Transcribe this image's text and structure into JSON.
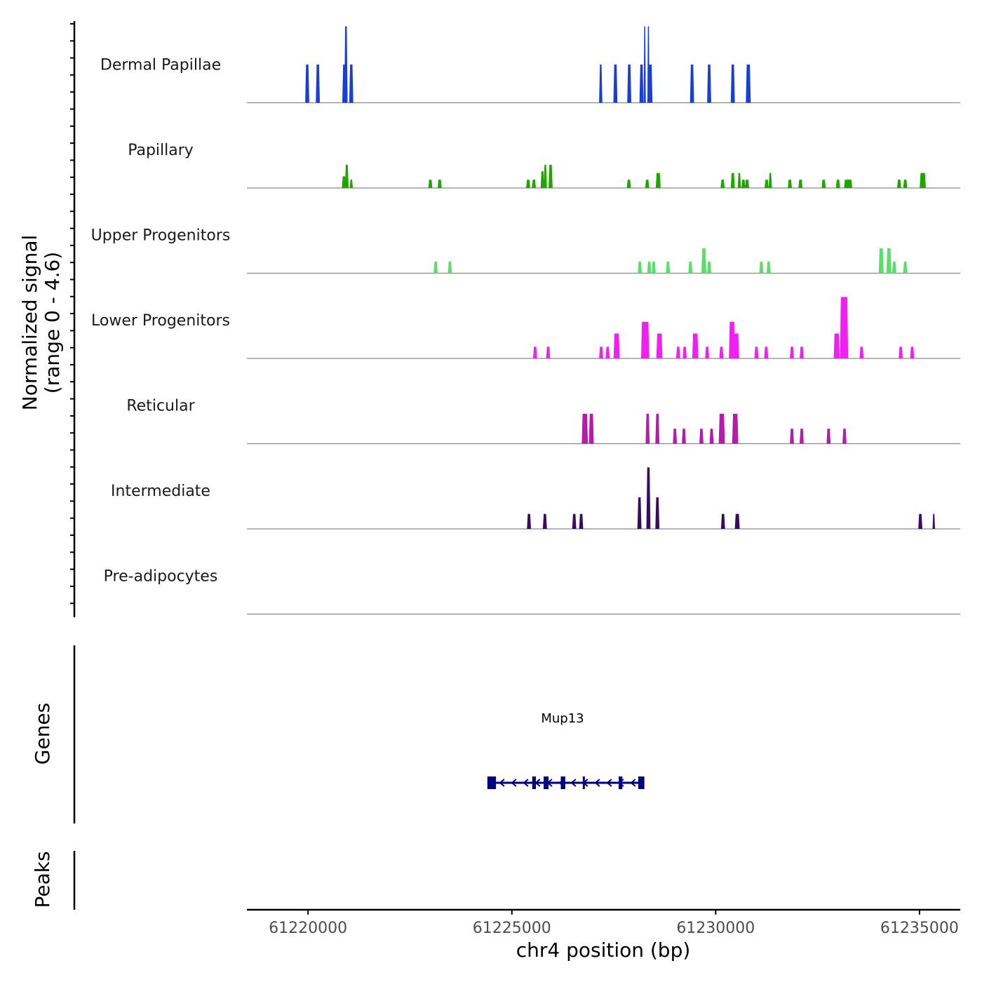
{
  "chart_data": {
    "type": "area",
    "ylabel_line1": "Normalized signal",
    "ylabel_line2": "(range 0 - 4.6)",
    "xlabel": "chr4 position (bp)",
    "y_range": [
      0,
      4.6
    ],
    "xlim": [
      61218500,
      61236000
    ],
    "x_ticks": [
      61220000,
      61225000,
      61230000,
      61235000
    ],
    "x_tick_labels": [
      "61220000",
      "61225000",
      "61230000",
      "61235000"
    ],
    "tracks": [
      {
        "name": "Dermal Papillae",
        "color": "#1A3FD6",
        "peaks": [
          [
            61219980,
            2.3,
            100
          ],
          [
            61220240,
            2.3,
            100
          ],
          [
            61220890,
            2.3,
            100
          ],
          [
            61220930,
            4.6,
            80
          ],
          [
            61221060,
            2.3,
            100
          ],
          [
            61227180,
            2.3,
            80
          ],
          [
            61227540,
            2.3,
            100
          ],
          [
            61227880,
            2.3,
            100
          ],
          [
            61228180,
            2.3,
            100
          ],
          [
            61228260,
            4.6,
            50
          ],
          [
            61228350,
            4.6,
            50
          ],
          [
            61228400,
            2.3,
            100
          ],
          [
            61229420,
            2.3,
            100
          ],
          [
            61229840,
            2.3,
            100
          ],
          [
            61230420,
            2.3,
            100
          ],
          [
            61230800,
            2.3,
            120
          ]
        ]
      },
      {
        "name": "Papillary",
        "color": "#1FA500",
        "peaks": [
          [
            61220880,
            0.7,
            100
          ],
          [
            61220950,
            1.4,
            90
          ],
          [
            61221060,
            0.5,
            80
          ],
          [
            61223000,
            0.5,
            100
          ],
          [
            61223230,
            0.5,
            100
          ],
          [
            61225400,
            0.5,
            100
          ],
          [
            61225540,
            0.5,
            100
          ],
          [
            61225750,
            1.0,
            90
          ],
          [
            61225820,
            1.4,
            80
          ],
          [
            61225950,
            1.4,
            100
          ],
          [
            61227870,
            0.5,
            100
          ],
          [
            61228320,
            0.5,
            100
          ],
          [
            61228590,
            0.9,
            120
          ],
          [
            61230170,
            0.5,
            100
          ],
          [
            61230420,
            0.9,
            100
          ],
          [
            61230580,
            0.9,
            80
          ],
          [
            61230680,
            0.5,
            100
          ],
          [
            61230770,
            0.5,
            100
          ],
          [
            61231250,
            0.5,
            100
          ],
          [
            61231340,
            0.9,
            80
          ],
          [
            61231820,
            0.5,
            100
          ],
          [
            61232080,
            0.5,
            100
          ],
          [
            61232650,
            0.5,
            100
          ],
          [
            61233000,
            0.5,
            100
          ],
          [
            61233250,
            0.5,
            200
          ],
          [
            61234500,
            0.5,
            100
          ],
          [
            61234650,
            0.5,
            100
          ],
          [
            61235080,
            0.9,
            150
          ]
        ]
      },
      {
        "name": "Upper Progenitors",
        "color": "#5ADE6A",
        "peaks": [
          [
            61223130,
            0.7,
            100
          ],
          [
            61223480,
            0.7,
            100
          ],
          [
            61228140,
            0.7,
            100
          ],
          [
            61228370,
            0.7,
            100
          ],
          [
            61228480,
            0.7,
            100
          ],
          [
            61228830,
            0.7,
            100
          ],
          [
            61229380,
            0.7,
            100
          ],
          [
            61229710,
            1.5,
            120
          ],
          [
            61229840,
            0.7,
            100
          ],
          [
            61231120,
            0.7,
            100
          ],
          [
            61231300,
            0.7,
            100
          ],
          [
            61234060,
            1.5,
            120
          ],
          [
            61234250,
            1.5,
            120
          ],
          [
            61234380,
            0.7,
            100
          ],
          [
            61234650,
            0.7,
            100
          ]
        ]
      },
      {
        "name": "Lower Progenitors",
        "color": "#F020F0",
        "peaks": [
          [
            61225570,
            0.7,
            100
          ],
          [
            61225890,
            0.7,
            100
          ],
          [
            61227190,
            0.7,
            100
          ],
          [
            61227350,
            0.7,
            100
          ],
          [
            61227570,
            1.5,
            150
          ],
          [
            61228270,
            2.2,
            200
          ],
          [
            61228620,
            1.5,
            150
          ],
          [
            61229080,
            0.7,
            100
          ],
          [
            61229240,
            0.7,
            100
          ],
          [
            61229500,
            1.5,
            150
          ],
          [
            61229790,
            0.7,
            100
          ],
          [
            61230140,
            0.7,
            100
          ],
          [
            61230400,
            2.2,
            150
          ],
          [
            61230500,
            1.5,
            150
          ],
          [
            61231000,
            0.7,
            100
          ],
          [
            61231240,
            0.7,
            100
          ],
          [
            61231870,
            0.7,
            100
          ],
          [
            61232110,
            0.7,
            100
          ],
          [
            61232970,
            1.5,
            150
          ],
          [
            61233150,
            3.7,
            200
          ],
          [
            61233580,
            0.7,
            100
          ],
          [
            61234540,
            0.7,
            100
          ],
          [
            61234820,
            0.7,
            100
          ]
        ]
      },
      {
        "name": "Reticular",
        "color": "#B51CAD",
        "peaks": [
          [
            61226790,
            1.8,
            150
          ],
          [
            61226950,
            1.8,
            120
          ],
          [
            61228330,
            1.8,
            100
          ],
          [
            61228570,
            1.8,
            100
          ],
          [
            61229000,
            0.9,
            100
          ],
          [
            61229220,
            0.9,
            100
          ],
          [
            61229650,
            0.9,
            100
          ],
          [
            61229900,
            0.9,
            100
          ],
          [
            61230150,
            1.8,
            150
          ],
          [
            61230480,
            1.8,
            150
          ],
          [
            61231870,
            0.9,
            100
          ],
          [
            61232110,
            0.9,
            100
          ],
          [
            61232770,
            0.9,
            100
          ],
          [
            61233160,
            0.9,
            100
          ]
        ]
      },
      {
        "name": "Intermediate",
        "color": "#3A0C5F",
        "peaks": [
          [
            61225420,
            0.9,
            100
          ],
          [
            61225810,
            0.9,
            100
          ],
          [
            61226530,
            0.9,
            100
          ],
          [
            61226700,
            0.9,
            100
          ],
          [
            61228130,
            1.9,
            100
          ],
          [
            61228350,
            3.7,
            100
          ],
          [
            61228570,
            1.9,
            100
          ],
          [
            61230180,
            0.9,
            100
          ],
          [
            61230530,
            0.9,
            120
          ],
          [
            61235020,
            0.9,
            100
          ],
          [
            61235350,
            0.9,
            60
          ]
        ]
      },
      {
        "name": "Pre-adipocytes",
        "color": "#444444",
        "peaks": []
      }
    ],
    "genes_label": "Genes",
    "peaks_label": "Peaks",
    "gene": {
      "name": "Mup13",
      "start": 61224400,
      "end": 61228250,
      "strand": "-",
      "exons": [
        [
          61224400,
          61224610
        ],
        [
          61225500,
          61225590
        ],
        [
          61225780,
          61225900
        ],
        [
          61226200,
          61226310
        ],
        [
          61226740,
          61226790
        ],
        [
          61227620,
          61227710
        ],
        [
          61228100,
          61228250
        ]
      ]
    }
  }
}
